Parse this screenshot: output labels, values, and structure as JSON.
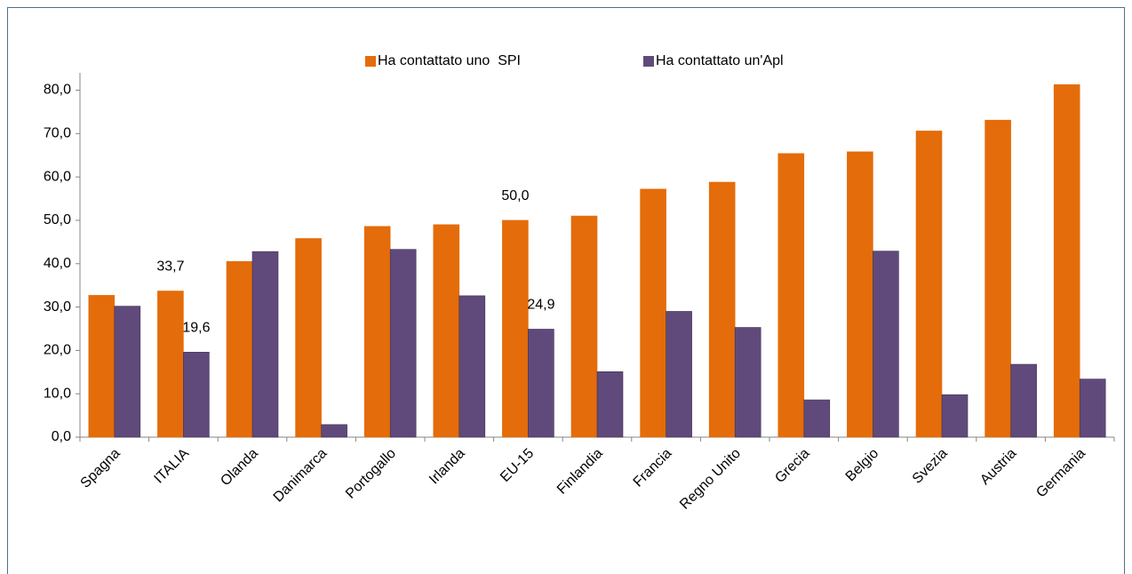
{
  "chart_data": {
    "type": "bar",
    "categories": [
      "Spagna",
      "ITALIA",
      "Olanda",
      "Danimarca",
      "Portogallo",
      "Irlanda",
      "EU-15",
      "Finlandia",
      "Francia",
      "Regno Unito",
      "Grecia",
      "Belgio",
      "Svezia",
      "Austria",
      "Germania"
    ],
    "series": [
      {
        "name": "Ha contattato uno  SPI",
        "color": "#e46c0a",
        "values": [
          32.7,
          33.7,
          40.5,
          45.8,
          48.6,
          49.0,
          50.0,
          51.0,
          57.2,
          58.8,
          65.4,
          65.8,
          70.6,
          73.1,
          81.3
        ],
        "value_labels": [
          null,
          "33,7",
          null,
          null,
          null,
          null,
          "50,0",
          null,
          null,
          null,
          null,
          null,
          null,
          null,
          null
        ]
      },
      {
        "name": "Ha contattato un'Apl",
        "color": "#604a7b",
        "values": [
          30.2,
          19.6,
          42.8,
          2.9,
          43.3,
          32.6,
          24.9,
          15.1,
          29.0,
          25.3,
          8.6,
          42.9,
          9.8,
          16.8,
          13.4
        ],
        "value_labels": [
          null,
          "19,6",
          null,
          null,
          null,
          null,
          "24,9",
          null,
          null,
          null,
          null,
          null,
          null,
          null,
          null
        ]
      }
    ],
    "ylim": [
      0,
      84
    ],
    "yticks": [
      {
        "value": 0,
        "label": "0,0"
      },
      {
        "value": 10,
        "label": "10,0"
      },
      {
        "value": 20,
        "label": "20,0"
      },
      {
        "value": 30,
        "label": "30,0"
      },
      {
        "value": 40,
        "label": "40,0"
      },
      {
        "value": 50,
        "label": "50,0"
      },
      {
        "value": 60,
        "label": "60,0"
      },
      {
        "value": 70,
        "label": "70,0"
      },
      {
        "value": 80,
        "label": "80,0"
      }
    ],
    "grid": false,
    "legend": "top"
  }
}
